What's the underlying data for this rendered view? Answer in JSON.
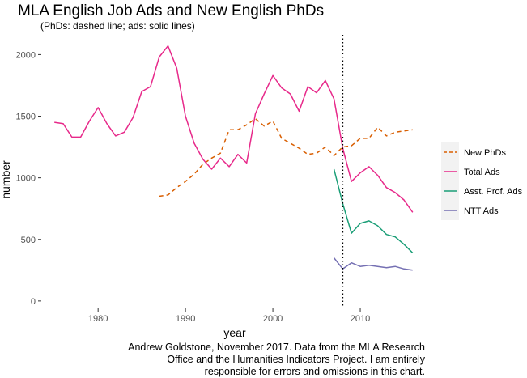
{
  "title": "MLA English Job Ads and New English PhDs",
  "subtitle": "(PhDs: dashed line; ads: solid lines)",
  "caption": "Andrew Goldstone, November 2017. Data from the MLA Research\nOffice and the Humanities Indicators Project. I am entirely\nresponsible for errors and omissions in this chart.",
  "chart_data": {
    "type": "line",
    "xlabel": "year",
    "ylabel": "number",
    "xlim": [
      1973.5,
      2017.5
    ],
    "ylim": [
      -60,
      2180
    ],
    "xticks": [
      1980,
      1990,
      2000,
      2010
    ],
    "yticks": [
      0,
      500,
      1000,
      1500,
      2000
    ],
    "vline": {
      "x": 2008,
      "style": "dotted"
    },
    "grid": false,
    "legend_position": "right",
    "series": [
      {
        "name": "New PhDs",
        "color": "#d95f02",
        "dash": true,
        "x": [
          1987,
          1988,
          1989,
          1990,
          1991,
          1992,
          1993,
          1994,
          1995,
          1996,
          1997,
          1998,
          1999,
          2000,
          2001,
          2002,
          2003,
          2004,
          2005,
          2006,
          2007,
          2008,
          2009,
          2010,
          2011,
          2012,
          2013,
          2014,
          2015,
          2016
        ],
        "values": [
          850,
          860,
          920,
          970,
          1030,
          1110,
          1160,
          1200,
          1390,
          1390,
          1430,
          1480,
          1420,
          1460,
          1320,
          1280,
          1240,
          1190,
          1200,
          1250,
          1180,
          1250,
          1260,
          1320,
          1320,
          1410,
          1340,
          1370,
          1380,
          1390
        ]
      },
      {
        "name": "Total Ads",
        "color": "#e7298a",
        "dash": false,
        "x": [
          1975,
          1976,
          1977,
          1978,
          1979,
          1980,
          1981,
          1982,
          1983,
          1984,
          1985,
          1986,
          1987,
          1988,
          1989,
          1990,
          1991,
          1992,
          1993,
          1994,
          1995,
          1996,
          1997,
          1998,
          1999,
          2000,
          2001,
          2002,
          2003,
          2004,
          2005,
          2006,
          2007,
          2008,
          2009,
          2010,
          2011,
          2012,
          2013,
          2014,
          2015,
          2016
        ],
        "values": [
          1450,
          1440,
          1330,
          1330,
          1460,
          1570,
          1440,
          1340,
          1370,
          1490,
          1700,
          1740,
          1980,
          2070,
          1890,
          1500,
          1280,
          1150,
          1070,
          1160,
          1090,
          1190,
          1120,
          1520,
          1680,
          1830,
          1730,
          1680,
          1540,
          1740,
          1690,
          1790,
          1640,
          1240,
          970,
          1040,
          1090,
          1020,
          920,
          880,
          820,
          720
        ]
      },
      {
        "name": "Asst. Prof. Ads",
        "color": "#1b9e77",
        "dash": false,
        "x": [
          2007,
          2008,
          2009,
          2010,
          2011,
          2012,
          2013,
          2014,
          2015,
          2016
        ],
        "values": [
          1070,
          790,
          550,
          630,
          650,
          610,
          540,
          520,
          460,
          390
        ]
      },
      {
        "name": "NTT Ads",
        "color": "#7570b3",
        "dash": false,
        "x": [
          2007,
          2008,
          2009,
          2010,
          2011,
          2012,
          2013,
          2014,
          2015,
          2016
        ],
        "values": [
          350,
          260,
          310,
          280,
          290,
          280,
          270,
          280,
          260,
          250
        ]
      }
    ]
  }
}
